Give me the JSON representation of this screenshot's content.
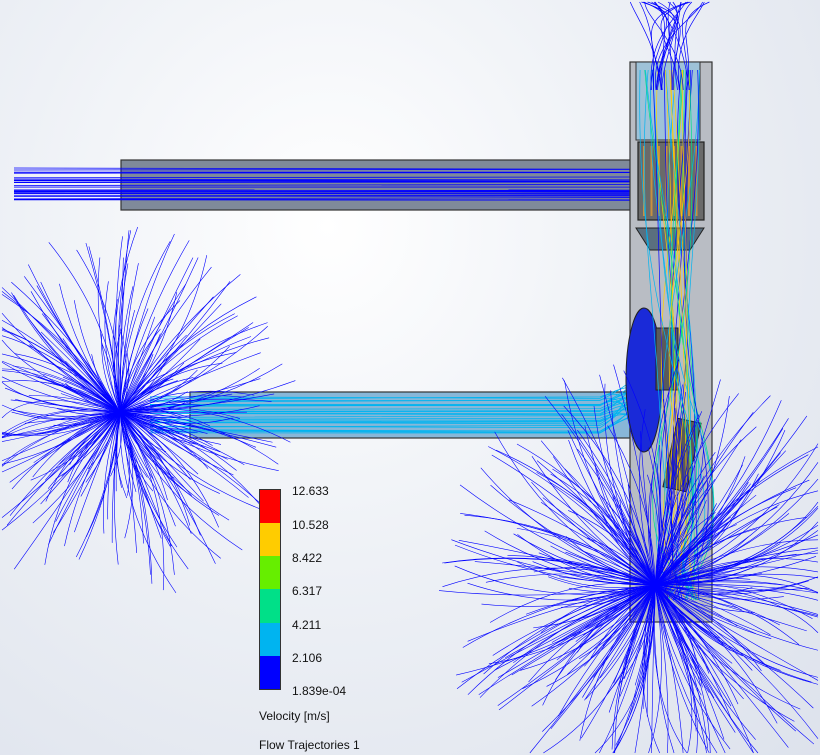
{
  "legend": {
    "title": "Velocity [m/s]",
    "caption": "Flow Trajectories 1",
    "ticks": [
      "12.633",
      "10.528",
      "8.422",
      "6.317",
      "4.211",
      "2.106",
      "1.839e-04"
    ],
    "colors": [
      "#ff0000",
      "#ffcc00",
      "#66ee00",
      "#00e088",
      "#00b4f0",
      "#0000ff"
    ]
  },
  "colors": {
    "duct_gray": "#8a8a8a",
    "housing": "#b8bcc2",
    "trajectory_blue": "#0000ff",
    "trajectory_cyan": "#00b4f0",
    "trajectory_green": "#00e088",
    "trajectory_yellow": "#ffcc00"
  }
}
